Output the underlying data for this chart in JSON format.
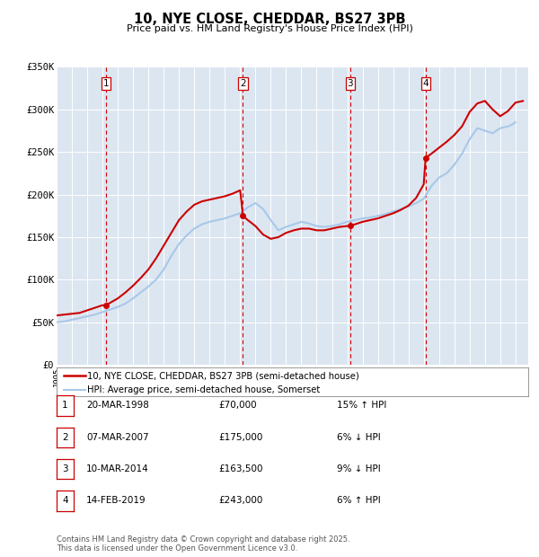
{
  "title": "10, NYE CLOSE, CHEDDAR, BS27 3PB",
  "subtitle": "Price paid vs. HM Land Registry's House Price Index (HPI)",
  "background_color": "#ffffff",
  "plot_bg_color": "#dce6f1",
  "grid_color": "#ffffff",
  "ylim": [
    0,
    350000
  ],
  "yticks": [
    0,
    50000,
    100000,
    150000,
    200000,
    250000,
    300000,
    350000
  ],
  "ytick_labels": [
    "£0",
    "£50K",
    "£100K",
    "£150K",
    "£200K",
    "£250K",
    "£300K",
    "£350K"
  ],
  "xmin": 1995.0,
  "xmax": 2025.83,
  "sale_color": "#cc0000",
  "hpi_color": "#a8c8e8",
  "sale_linewidth": 1.5,
  "hpi_linewidth": 1.5,
  "sale_label": "10, NYE CLOSE, CHEDDAR, BS27 3PB (semi-detached house)",
  "hpi_label": "HPI: Average price, semi-detached house, Somerset",
  "transaction_dates": [
    1998.22,
    2007.18,
    2014.19,
    2019.12
  ],
  "transaction_prices": [
    70000,
    175000,
    163500,
    243000
  ],
  "transaction_labels": [
    "1",
    "2",
    "3",
    "4"
  ],
  "vline_dates": [
    1998.22,
    2007.18,
    2014.19,
    2019.12
  ],
  "footnote": "Contains HM Land Registry data © Crown copyright and database right 2025.\nThis data is licensed under the Open Government Licence v3.0.",
  "table_rows": [
    [
      "1",
      "20-MAR-1998",
      "£70,000",
      "15% ↑ HPI"
    ],
    [
      "2",
      "07-MAR-2007",
      "£175,000",
      "6% ↓ HPI"
    ],
    [
      "3",
      "10-MAR-2014",
      "£163,500",
      "9% ↓ HPI"
    ],
    [
      "4",
      "14-FEB-2019",
      "£243,000",
      "6% ↑ HPI"
    ]
  ],
  "hpi_x": [
    1995.0,
    1995.25,
    1995.5,
    1995.75,
    1996.0,
    1996.25,
    1996.5,
    1996.75,
    1997.0,
    1997.25,
    1997.5,
    1997.75,
    1998.0,
    1998.25,
    1998.5,
    1998.75,
    1999.0,
    1999.25,
    1999.5,
    1999.75,
    2000.0,
    2000.25,
    2000.5,
    2000.75,
    2001.0,
    2001.25,
    2001.5,
    2001.75,
    2002.0,
    2002.25,
    2002.5,
    2002.75,
    2003.0,
    2003.25,
    2003.5,
    2003.75,
    2004.0,
    2004.25,
    2004.5,
    2004.75,
    2005.0,
    2005.25,
    2005.5,
    2005.75,
    2006.0,
    2006.25,
    2006.5,
    2006.75,
    2007.0,
    2007.25,
    2007.5,
    2007.75,
    2008.0,
    2008.25,
    2008.5,
    2008.75,
    2009.0,
    2009.25,
    2009.5,
    2009.75,
    2010.0,
    2010.25,
    2010.5,
    2010.75,
    2011.0,
    2011.25,
    2011.5,
    2011.75,
    2012.0,
    2012.25,
    2012.5,
    2012.75,
    2013.0,
    2013.25,
    2013.5,
    2013.75,
    2014.0,
    2014.25,
    2014.5,
    2014.75,
    2015.0,
    2015.25,
    2015.5,
    2015.75,
    2016.0,
    2016.25,
    2016.5,
    2016.75,
    2017.0,
    2017.25,
    2017.5,
    2017.75,
    2018.0,
    2018.25,
    2018.5,
    2018.75,
    2019.0,
    2019.25,
    2019.5,
    2019.75,
    2020.0,
    2020.25,
    2020.5,
    2020.75,
    2021.0,
    2021.25,
    2021.5,
    2021.75,
    2022.0,
    2022.25,
    2022.5,
    2022.75,
    2023.0,
    2023.25,
    2023.5,
    2023.75,
    2024.0,
    2024.25,
    2024.5,
    2024.75,
    2025.0
  ],
  "hpi_y": [
    50000,
    50500,
    51000,
    52000,
    53000,
    54000,
    55000,
    56000,
    57000,
    58000,
    59000,
    60500,
    62000,
    63500,
    65000,
    66500,
    68000,
    70000,
    72000,
    75000,
    78000,
    81500,
    85000,
    88500,
    92000,
    96000,
    100000,
    106000,
    112000,
    120000,
    128000,
    135000,
    142000,
    147000,
    152000,
    156000,
    160000,
    162500,
    165000,
    166500,
    168000,
    169000,
    170000,
    171000,
    172000,
    173500,
    175000,
    176500,
    178000,
    181500,
    185000,
    187500,
    190000,
    186500,
    183000,
    176500,
    170000,
    164000,
    158000,
    160000,
    162000,
    163500,
    165000,
    166500,
    168000,
    167000,
    166000,
    164500,
    163000,
    162500,
    162000,
    162500,
    163000,
    164000,
    165000,
    166500,
    168000,
    169000,
    170000,
    171000,
    172000,
    172500,
    173000,
    174000,
    175000,
    176000,
    177000,
    178500,
    180000,
    181500,
    183000,
    184500,
    186000,
    188000,
    190000,
    192500,
    195000,
    202500,
    210000,
    215000,
    220000,
    222500,
    225000,
    230000,
    235000,
    241500,
    248000,
    256500,
    265000,
    271500,
    278000,
    276500,
    275000,
    273500,
    272000,
    275000,
    278000,
    279000,
    280000,
    282000,
    285000
  ],
  "sale_x": [
    1995.0,
    1995.5,
    1996.0,
    1996.5,
    1997.0,
    1997.5,
    1998.0,
    1998.22,
    1999.0,
    1999.5,
    2000.0,
    2000.5,
    2001.0,
    2001.5,
    2002.0,
    2002.5,
    2003.0,
    2003.5,
    2004.0,
    2004.5,
    2005.0,
    2005.5,
    2006.0,
    2006.5,
    2007.0,
    2007.18,
    2007.5,
    2008.0,
    2008.5,
    2009.0,
    2009.5,
    2010.0,
    2010.5,
    2011.0,
    2011.5,
    2012.0,
    2012.5,
    2013.0,
    2013.5,
    2014.0,
    2014.19,
    2014.5,
    2015.0,
    2015.5,
    2016.0,
    2016.5,
    2017.0,
    2017.5,
    2018.0,
    2018.5,
    2019.0,
    2019.12,
    2019.5,
    2020.0,
    2020.5,
    2021.0,
    2021.5,
    2022.0,
    2022.5,
    2023.0,
    2023.5,
    2024.0,
    2024.5,
    2025.0,
    2025.5
  ],
  "sale_y": [
    58000,
    59000,
    60000,
    61000,
    64000,
    67000,
    70000,
    70000,
    78000,
    85000,
    93000,
    102000,
    112000,
    125000,
    140000,
    155000,
    170000,
    180000,
    188000,
    192000,
    194000,
    196000,
    198000,
    201000,
    205000,
    175000,
    170000,
    163000,
    153000,
    148000,
    150000,
    155000,
    158000,
    160000,
    160000,
    158000,
    158000,
    160000,
    162000,
    163000,
    163500,
    165000,
    168000,
    170000,
    172000,
    175000,
    178000,
    182000,
    187000,
    196000,
    212000,
    243000,
    248000,
    255000,
    262000,
    270000,
    280000,
    297000,
    307000,
    310000,
    300000,
    292000,
    298000,
    308000,
    310000
  ]
}
